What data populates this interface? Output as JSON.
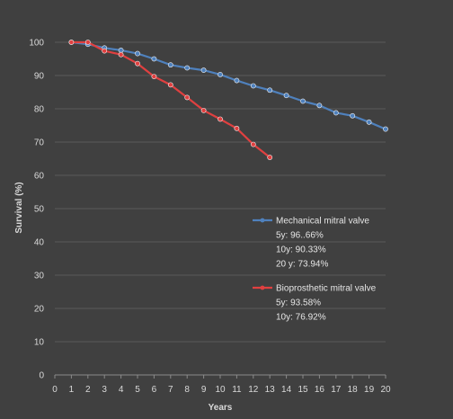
{
  "chart_data": {
    "type": "line",
    "xlabel": "Years",
    "ylabel": "Survival (%)",
    "xlim": [
      0,
      20
    ],
    "ylim": [
      0,
      100
    ],
    "x_ticks": [
      0,
      1,
      2,
      3,
      4,
      5,
      6,
      7,
      8,
      9,
      10,
      11,
      12,
      13,
      14,
      15,
      16,
      17,
      18,
      19,
      20
    ],
    "y_ticks": [
      0,
      10,
      20,
      30,
      40,
      50,
      60,
      70,
      80,
      90,
      100
    ],
    "grid": "horizontal",
    "legend_position": "right-middle",
    "series": [
      {
        "name": "Mechanical mitral valve",
        "color": "#4f81bd",
        "stats": [
          "5y: 96..66%",
          "10y: 90.33%",
          "20 y: 73.94%"
        ],
        "x": [
          1,
          2,
          3,
          4,
          5,
          6,
          7,
          8,
          9,
          10,
          11,
          12,
          13,
          14,
          15,
          16,
          17,
          18,
          19,
          20
        ],
        "values": [
          100,
          99.4,
          98.3,
          97.6,
          96.6,
          95.0,
          93.2,
          92.3,
          91.6,
          90.3,
          88.5,
          86.9,
          85.6,
          84.0,
          82.3,
          81.0,
          78.8,
          77.9,
          76.0,
          73.9
        ]
      },
      {
        "name": "Bioprosthetic  mitral valve",
        "color": "#e04040",
        "stats": [
          "5y: 93.58%",
          "10y: 76.92%"
        ],
        "x": [
          1,
          2,
          3,
          4,
          5,
          6,
          7,
          8,
          9,
          10,
          11,
          12,
          13
        ],
        "values": [
          100,
          100,
          97.4,
          96.3,
          93.6,
          89.7,
          87.2,
          83.4,
          79.5,
          76.9,
          74.1,
          69.3,
          65.4
        ]
      }
    ]
  }
}
